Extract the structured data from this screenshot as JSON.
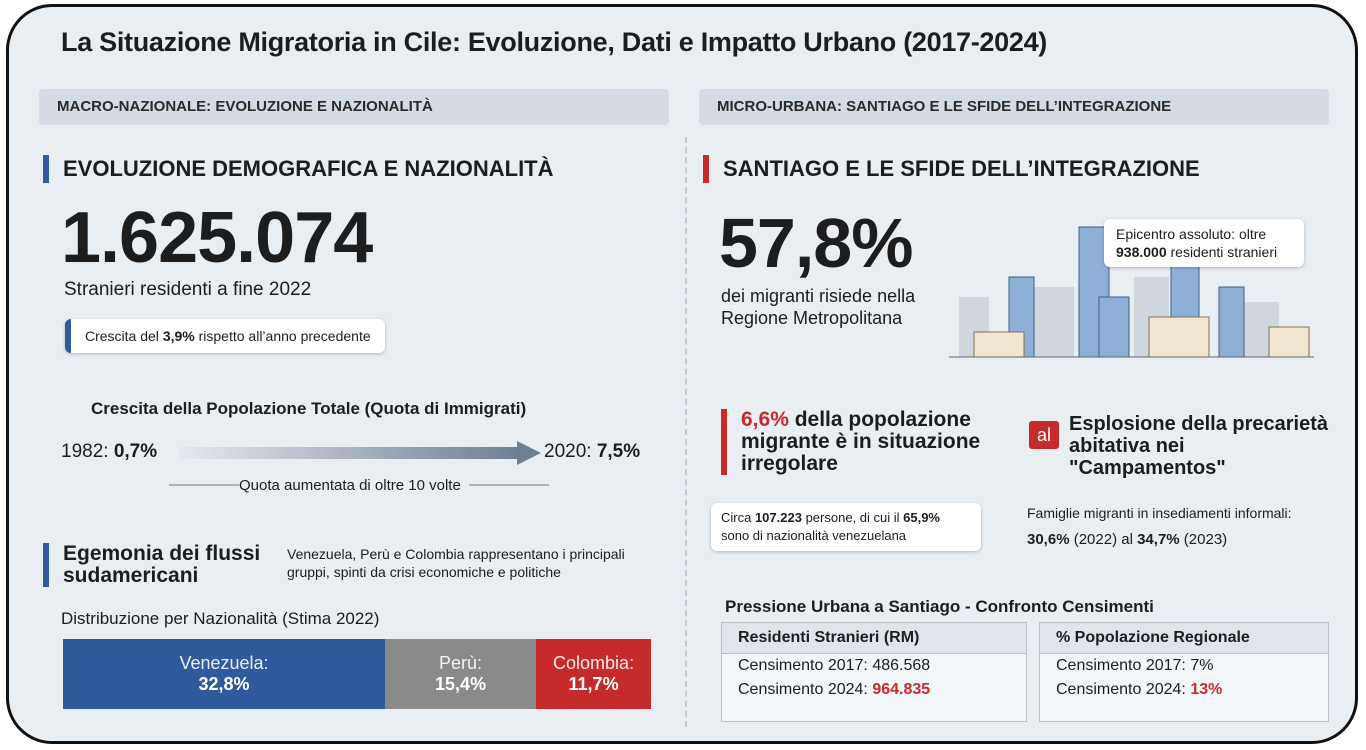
{
  "title": "La Situazione Migratoria in Cile: Evoluzione, Dati e Impatto Urbano (2017-2024)",
  "left": {
    "header": "MACRO-NAZIONALE: EVOLUZIONE E NAZIONALITÀ",
    "section_title": "EVOLUZIONE DEMOGRAFICA E NAZIONALITÀ",
    "big_number": "1.625.074",
    "big_caption": "Stranieri residenti a fine 2022",
    "growth_note": [
      "Crescita del ",
      "3,9%",
      " rispetto all’anno precedente"
    ],
    "growth_chart": {
      "title": "Crescita della Popolazione Totale (Quota di Immigrati)",
      "start_year": "1982: ",
      "start_value": "0,7%",
      "end_year": "2020: ",
      "end_value": "7,5%",
      "note": "Quota aumentata di oltre 10 volte"
    },
    "flows": {
      "title": "Egemonia dei flussi sudamericani",
      "description": "Venezuela, Perù e Colombia rappresentano i principali gruppi, spinti da crisi economiche e politiche",
      "subtitle": "Distribuzione per Nazionalità (Stima 2022)",
      "bars": [
        {
          "name": "Venezuela:",
          "value": 32.8,
          "label": "32,8%",
          "color": "#2f5b9e"
        },
        {
          "name": "Perù:",
          "value": 15.4,
          "label": "15,4%",
          "color": "#8a8a8a"
        },
        {
          "name": "Colombia:",
          "value": 11.7,
          "label": "11,7%",
          "color": "#c62b2b"
        }
      ]
    }
  },
  "right": {
    "header": "MICRO-URBANA: SANTIAGO E LE SFIDE DELL’INTEGRAZIONE",
    "section_title": "SANTIAGO E LE SFIDE DELL’INTEGRAZIONE",
    "big_number": "57,8%",
    "big_caption": [
      "dei migranti risiede nella",
      "Regione Metropolitana"
    ],
    "callout": [
      "Epicentro assoluto: oltre",
      "938.000",
      " residenti stranieri"
    ],
    "irregular": {
      "title": [
        "6,6%",
        " della popolazione migrante è in situazione irregolare"
      ],
      "note": [
        "Circa ",
        "107.223",
        " persone, di cui il ",
        "65,9%",
        " sono di nazionalità venezuelana"
      ]
    },
    "campamentos": {
      "icon": "al",
      "title": "Esplosione della precarietà abitativa nei \"Campamentos\"",
      "description": "Famiglie migranti in insediamenti informali:",
      "values": [
        "30,6%",
        " (2022) al ",
        "34,7%",
        " (2023)"
      ]
    },
    "census": {
      "title": "Pressione Urbana a Santiago - Confronto Censimenti",
      "tables": [
        {
          "header": "Residenti Stranieri (RM)",
          "rows": [
            [
              "Censimento 2017: ",
              "486.568"
            ],
            [
              "Censimento 2024: ",
              "964.835"
            ]
          ]
        },
        {
          "header": "% Popolazione Regionale",
          "rows": [
            [
              "Censimento 2017: ",
              "7%"
            ],
            [
              "Censimento 2024: ",
              "13%"
            ]
          ]
        }
      ]
    }
  }
}
